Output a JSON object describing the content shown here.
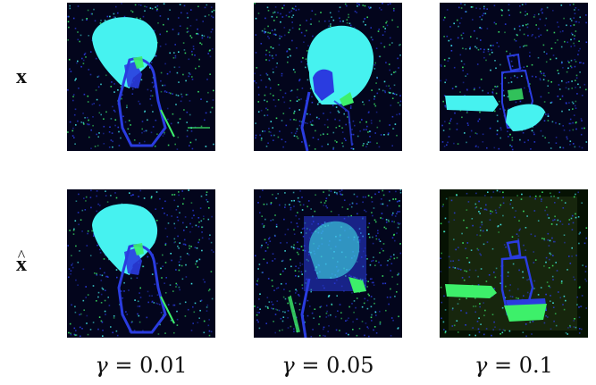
{
  "row_labels": {
    "x": "x",
    "x_hat": "x"
  },
  "columns": [
    {
      "symbol": "γ",
      "equals": " = ",
      "value": "0.01"
    },
    {
      "symbol": "γ",
      "equals": " = ",
      "value": "0.05"
    },
    {
      "symbol": "γ",
      "equals": " = ",
      "value": "0.1"
    }
  ],
  "colors": {
    "background": "#03051c",
    "cyan": "#46f2f0",
    "blue": "#2a3ce0",
    "green": "#3df06a"
  }
}
